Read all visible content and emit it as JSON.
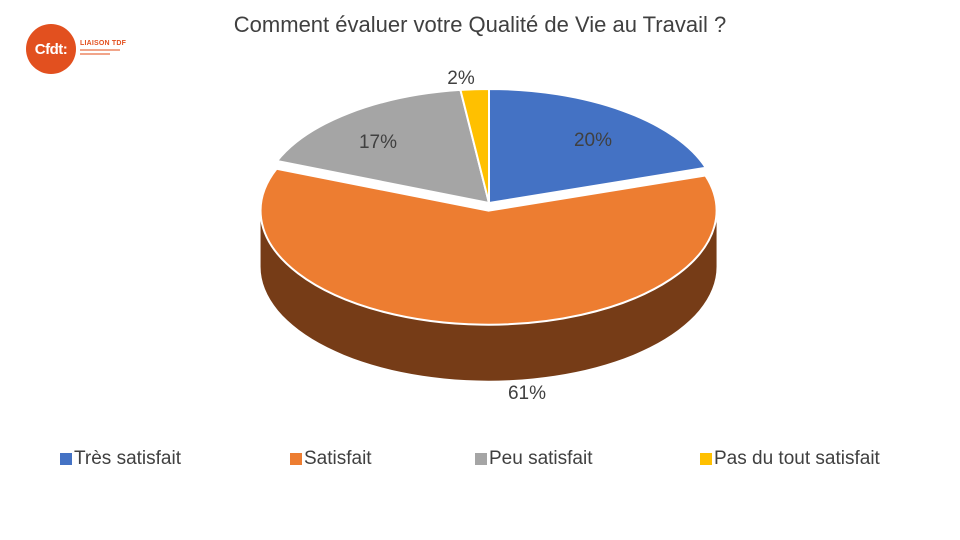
{
  "logo": {
    "badge_text": "Cfdt:",
    "name_text": "LIAISON TDF"
  },
  "title": "Comment évaluer votre Qualité de Vie au Travail ?",
  "chart_data": {
    "type": "pie",
    "style": "3d",
    "title": "Comment évaluer votre Qualité de Vie au Travail ?",
    "categories": [
      "Très satisfait",
      "Satisfait",
      "Peu satisfait",
      "Pas du tout satisfait"
    ],
    "values": [
      20,
      61,
      17,
      2
    ],
    "labels": [
      "20%",
      "61%",
      "17%",
      "2%"
    ],
    "colors": [
      "#4472c4",
      "#ed7d31",
      "#a5a5a5",
      "#ffc000"
    ],
    "side_colors": [
      "#2c4d8a",
      "#763c17",
      "#6e6e6e",
      "#b38700"
    ],
    "legend_position": "bottom"
  }
}
